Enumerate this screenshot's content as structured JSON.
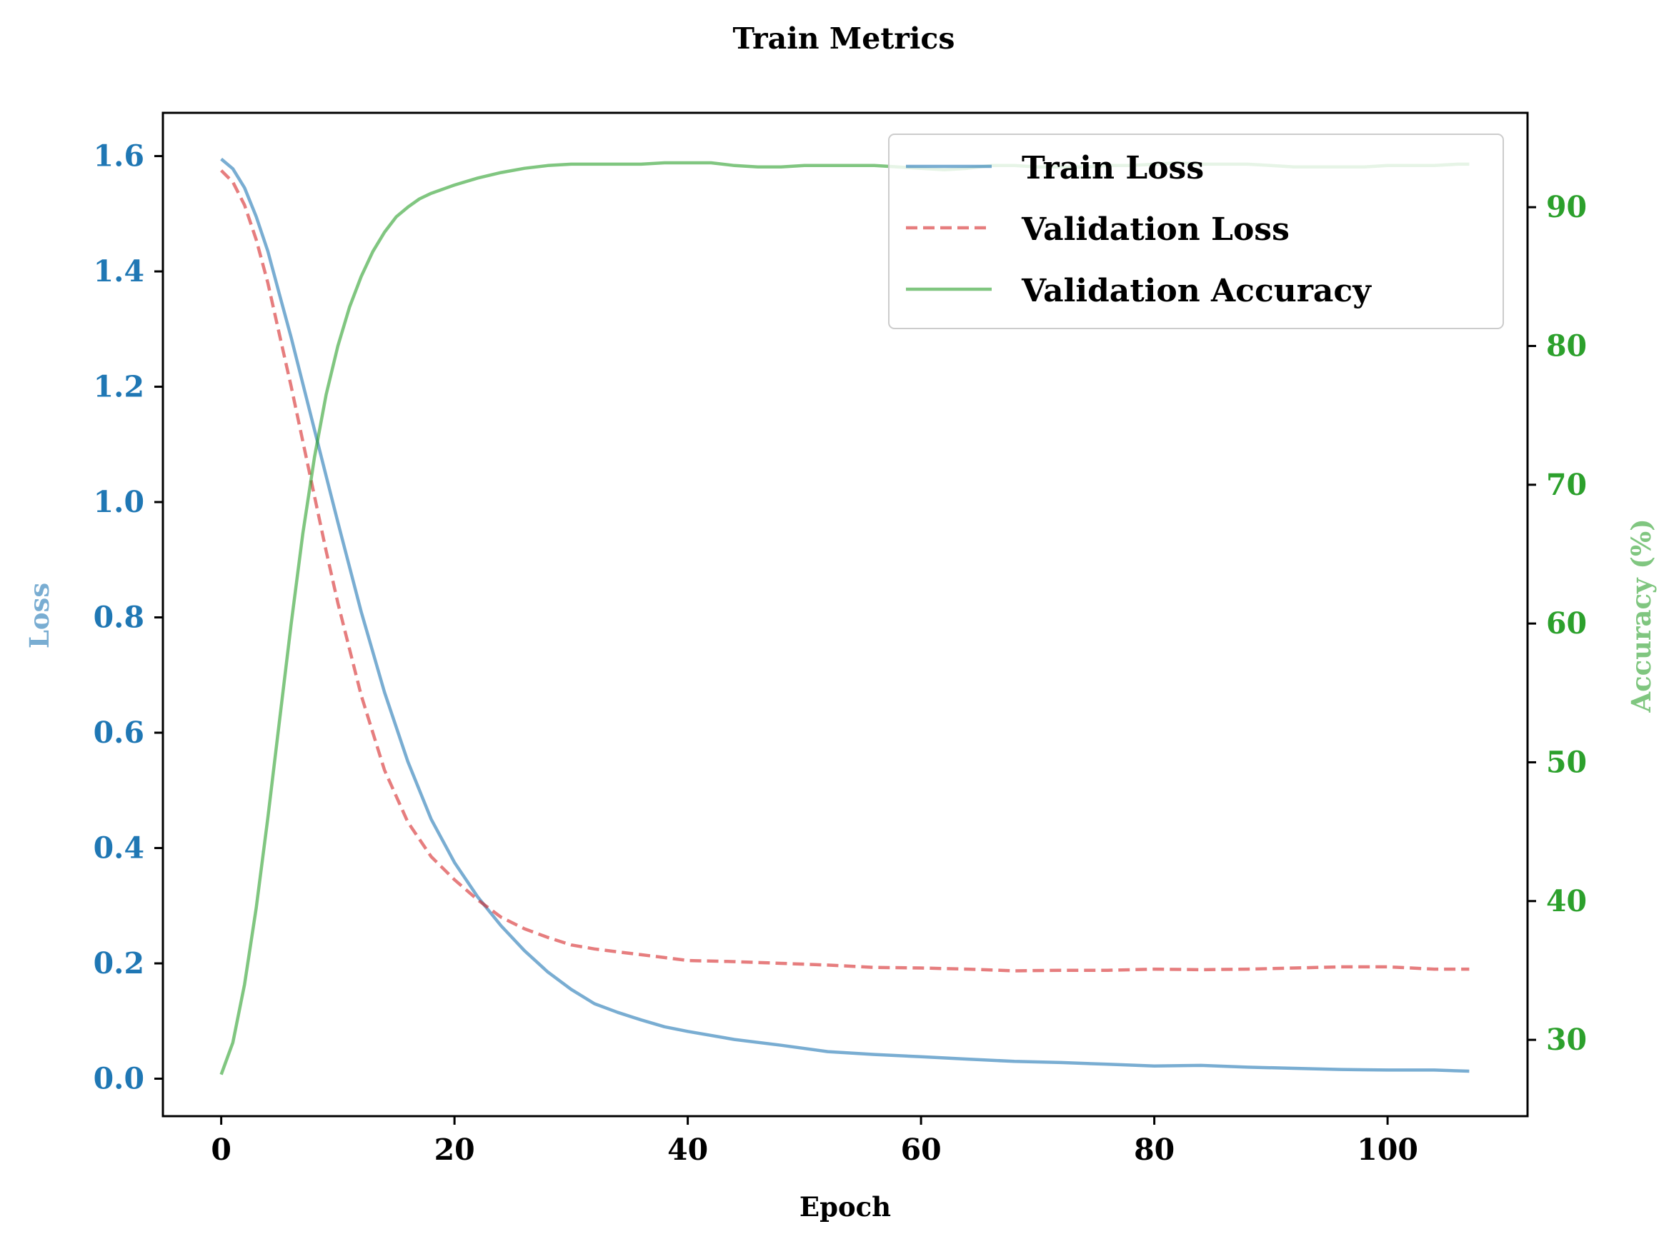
{
  "chart_data": {
    "type": "line",
    "title": "Train Metrics",
    "xlabel": "Epoch",
    "ylabel_left": "Loss",
    "ylabel_right": "Accuracy (%)",
    "xlim": [
      -5,
      112
    ],
    "ylim_left": [
      -0.065,
      1.675
    ],
    "ylim_right": [
      24.5,
      96.8
    ],
    "x_ticks": [
      0,
      20,
      40,
      60,
      80,
      100
    ],
    "y_ticks_left": [
      0.0,
      0.2,
      0.4,
      0.6,
      0.8,
      1.0,
      1.2,
      1.4,
      1.6
    ],
    "y_ticks_right": [
      30,
      40,
      50,
      60,
      70,
      80,
      90
    ],
    "legend_position": "top-right",
    "grid": false,
    "colors": {
      "train_loss": "#1f77b4",
      "validation_loss": "#d62728",
      "validation_accuracy": "#2ca02c",
      "left_axis": "#1f77b4",
      "right_axis": "#2ca02c"
    },
    "series": [
      {
        "name": "Train Loss",
        "axis": "left",
        "style": "solid",
        "x": [
          0,
          1,
          2,
          3,
          4,
          5,
          6,
          7,
          8,
          9,
          10,
          12,
          14,
          16,
          18,
          20,
          22,
          24,
          26,
          28,
          30,
          32,
          34,
          36,
          38,
          40,
          44,
          48,
          52,
          56,
          60,
          64,
          68,
          72,
          76,
          80,
          84,
          88,
          92,
          96,
          100,
          104,
          107
        ],
        "y": [
          1.595,
          1.578,
          1.545,
          1.495,
          1.435,
          1.36,
          1.285,
          1.205,
          1.125,
          1.045,
          0.965,
          0.81,
          0.67,
          0.55,
          0.45,
          0.375,
          0.315,
          0.265,
          0.222,
          0.185,
          0.155,
          0.13,
          0.115,
          0.102,
          0.09,
          0.082,
          0.068,
          0.058,
          0.047,
          0.042,
          0.038,
          0.034,
          0.03,
          0.028,
          0.025,
          0.022,
          0.023,
          0.02,
          0.018,
          0.016,
          0.015,
          0.015,
          0.013
        ]
      },
      {
        "name": "Validation Loss",
        "axis": "left",
        "style": "dashed",
        "x": [
          0,
          1,
          2,
          3,
          4,
          5,
          6,
          7,
          8,
          9,
          10,
          12,
          14,
          16,
          18,
          20,
          22,
          24,
          26,
          28,
          30,
          32,
          34,
          36,
          38,
          40,
          44,
          48,
          52,
          56,
          60,
          64,
          68,
          72,
          76,
          80,
          84,
          88,
          92,
          96,
          100,
          104,
          107
        ],
        "y": [
          1.575,
          1.555,
          1.515,
          1.455,
          1.38,
          1.29,
          1.2,
          1.105,
          1.01,
          0.915,
          0.825,
          0.665,
          0.535,
          0.445,
          0.385,
          0.345,
          0.31,
          0.28,
          0.26,
          0.245,
          0.232,
          0.225,
          0.22,
          0.215,
          0.21,
          0.205,
          0.203,
          0.2,
          0.197,
          0.193,
          0.192,
          0.19,
          0.187,
          0.188,
          0.188,
          0.19,
          0.189,
          0.19,
          0.192,
          0.194,
          0.194,
          0.19,
          0.19
        ]
      },
      {
        "name": "Validation Accuracy",
        "axis": "right",
        "style": "solid",
        "x": [
          0,
          1,
          2,
          3,
          4,
          5,
          6,
          7,
          8,
          9,
          10,
          11,
          12,
          13,
          14,
          15,
          16,
          17,
          18,
          20,
          22,
          24,
          26,
          28,
          30,
          32,
          34,
          36,
          38,
          40,
          42,
          44,
          46,
          48,
          50,
          52,
          54,
          56,
          58,
          60,
          62,
          64,
          66,
          68,
          70,
          72,
          74,
          76,
          78,
          80,
          82,
          84,
          86,
          88,
          90,
          92,
          94,
          96,
          98,
          100,
          102,
          104,
          106,
          107
        ],
        "y": [
          27.5,
          29.8,
          34.0,
          39.5,
          46.0,
          53.0,
          60.0,
          66.5,
          72.0,
          76.5,
          80.0,
          82.8,
          85.0,
          86.8,
          88.2,
          89.3,
          90.0,
          90.6,
          91.0,
          91.6,
          92.1,
          92.5,
          92.8,
          93.0,
          93.1,
          93.1,
          93.1,
          93.1,
          93.2,
          93.2,
          93.2,
          93.0,
          92.9,
          92.9,
          93.0,
          93.0,
          93.0,
          93.0,
          92.9,
          92.8,
          92.7,
          92.8,
          93.0,
          93.0,
          92.9,
          92.9,
          92.9,
          93.0,
          93.0,
          93.1,
          93.2,
          93.1,
          93.1,
          93.1,
          93.0,
          92.9,
          92.9,
          92.9,
          92.9,
          93.0,
          93.0,
          93.0,
          93.1,
          93.1
        ]
      }
    ]
  }
}
